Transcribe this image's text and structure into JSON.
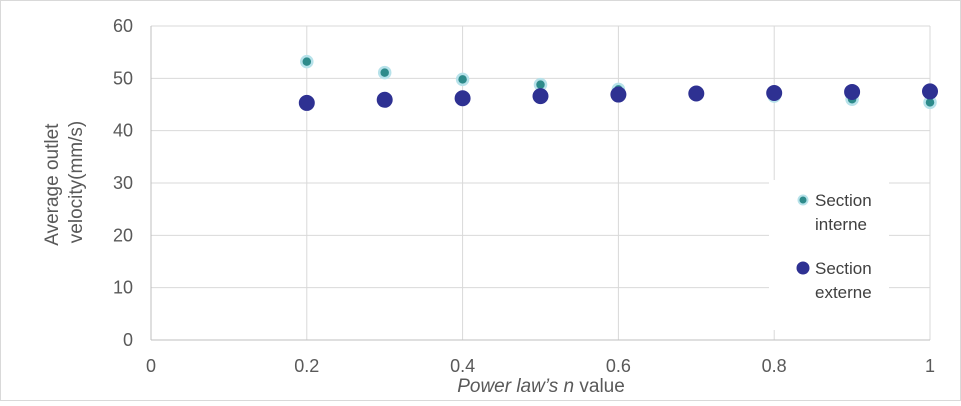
{
  "chart_data": {
    "type": "scatter",
    "title": "",
    "xlabel": {
      "prefix": "Power law’s ",
      "italic_var": "n",
      "suffix": " value"
    },
    "ylabel_lines": [
      "Average outlet",
      "velocity(mm/s)"
    ],
    "xlim": [
      0,
      1
    ],
    "ylim": [
      0,
      60
    ],
    "x_ticks": [
      0,
      0.2,
      0.4,
      0.6,
      0.8,
      1
    ],
    "x_tick_labels": [
      "0",
      "0.2",
      "0.4",
      "0.6",
      "0.8",
      "1"
    ],
    "y_ticks": [
      0,
      10,
      20,
      30,
      40,
      50,
      60
    ],
    "y_tick_labels": [
      "0",
      "10",
      "20",
      "30",
      "40",
      "50",
      "60"
    ],
    "grid": true,
    "legend_position": "right",
    "series": [
      {
        "name_lines": [
          "Section",
          "interne"
        ],
        "color": "#2E8B8B",
        "edge_color": "#B7E2EA",
        "marker_size": "small",
        "points": [
          {
            "x": 0.2,
            "y": 53.2
          },
          {
            "x": 0.3,
            "y": 51.1
          },
          {
            "x": 0.4,
            "y": 49.8
          },
          {
            "x": 0.5,
            "y": 48.8
          },
          {
            "x": 0.6,
            "y": 47.9
          },
          {
            "x": 0.7,
            "y": 47.2
          },
          {
            "x": 0.8,
            "y": 46.6
          },
          {
            "x": 0.9,
            "y": 46.0
          },
          {
            "x": 1.0,
            "y": 45.4
          }
        ]
      },
      {
        "name_lines": [
          "Section",
          "externe"
        ],
        "color": "#2E3192",
        "edge_color": "#2E3192",
        "marker_size": "large",
        "points": [
          {
            "x": 0.2,
            "y": 45.3
          },
          {
            "x": 0.3,
            "y": 45.9
          },
          {
            "x": 0.4,
            "y": 46.2
          },
          {
            "x": 0.5,
            "y": 46.6
          },
          {
            "x": 0.6,
            "y": 46.9
          },
          {
            "x": 0.7,
            "y": 47.1
          },
          {
            "x": 0.8,
            "y": 47.2
          },
          {
            "x": 0.9,
            "y": 47.4
          },
          {
            "x": 1.0,
            "y": 47.5
          }
        ]
      }
    ]
  }
}
